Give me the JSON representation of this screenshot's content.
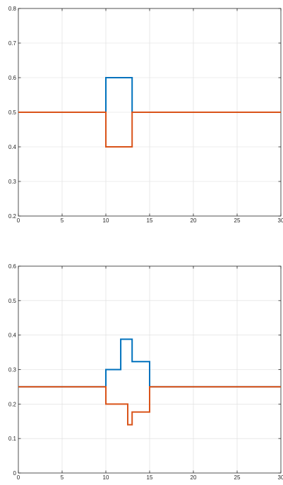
{
  "chart_data": [
    {
      "type": "line",
      "title": "",
      "xlabel": "",
      "ylabel": "",
      "xlim": [
        0,
        30
      ],
      "ylim": [
        0.2,
        0.8
      ],
      "xticks": [
        0,
        5,
        10,
        15,
        20,
        25,
        30
      ],
      "yticks": [
        0.2,
        0.3,
        0.4,
        0.5,
        0.6,
        0.7,
        0.8
      ],
      "xtick_labels": [
        "0",
        "5",
        "10",
        "15",
        "20",
        "25",
        "30"
      ],
      "ytick_labels": [
        "0.2",
        "0.3",
        "0.4",
        "0.5",
        "0.6",
        "0.7",
        "0.8"
      ],
      "grid": true,
      "legend": "none",
      "series": [
        {
          "color": "#0072BD",
          "x": [
            0,
            10,
            10,
            13,
            13,
            30
          ],
          "y": [
            0.5,
            0.5,
            0.6,
            0.6,
            0.5,
            0.5
          ]
        },
        {
          "color": "#D95319",
          "x": [
            0,
            10,
            10,
            13,
            13,
            30
          ],
          "y": [
            0.5,
            0.5,
            0.4,
            0.4,
            0.5,
            0.5
          ]
        }
      ]
    },
    {
      "type": "line",
      "title": "",
      "xlabel": "",
      "ylabel": "",
      "xlim": [
        0,
        30
      ],
      "ylim": [
        0,
        0.6
      ],
      "xticks": [
        0,
        5,
        10,
        15,
        20,
        25,
        30
      ],
      "yticks": [
        0,
        0.1,
        0.2,
        0.3,
        0.4,
        0.5,
        0.6
      ],
      "xtick_labels": [
        "0",
        "5",
        "10",
        "15",
        "20",
        "25",
        "30"
      ],
      "ytick_labels": [
        "0",
        "0.1",
        "0.2",
        "0.3",
        "0.4",
        "0.5",
        "0.6"
      ],
      "grid": true,
      "legend": "none",
      "series": [
        {
          "color": "#0072BD",
          "x": [
            0,
            10,
            10,
            11.7,
            11.7,
            13,
            13,
            15,
            15,
            30
          ],
          "y": [
            0.25,
            0.25,
            0.3,
            0.3,
            0.388,
            0.388,
            0.323,
            0.323,
            0.25,
            0.25
          ]
        },
        {
          "color": "#D95319",
          "x": [
            0,
            10,
            10,
            12.5,
            12.5,
            13,
            13,
            15,
            15,
            30
          ],
          "y": [
            0.25,
            0.25,
            0.2,
            0.2,
            0.14,
            0.14,
            0.177,
            0.177,
            0.25,
            0.25
          ]
        }
      ]
    }
  ]
}
